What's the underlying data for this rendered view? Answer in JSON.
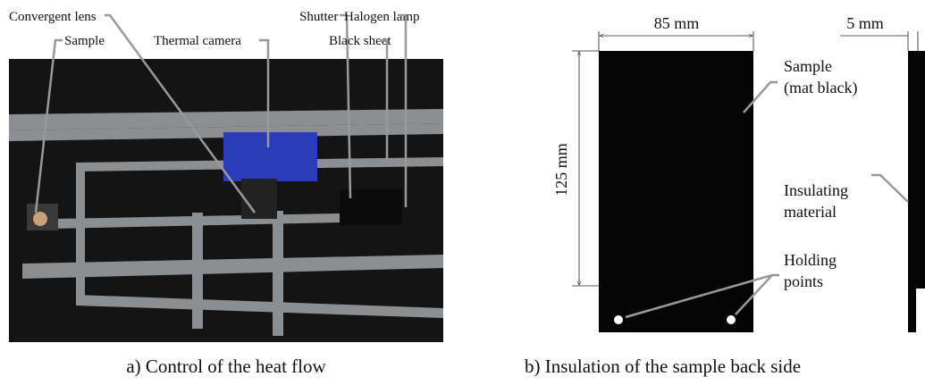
{
  "panel_a": {
    "labels": [
      "Convergent lens",
      "Sample",
      "Thermal camera",
      "Shutter",
      "Black sheet",
      "Halogen lamp"
    ],
    "caption": "a) Control of the heat flow"
  },
  "panel_b": {
    "width_label": "85 mm",
    "height_label": "125 mm",
    "thickness_label": "5 mm",
    "sample_label": [
      "Sample",
      "(mat black)"
    ],
    "insulation_label": [
      "Insulating",
      "material"
    ],
    "holding_label": [
      "Holding",
      "points"
    ],
    "caption": "b) Insulation of the sample back side"
  }
}
